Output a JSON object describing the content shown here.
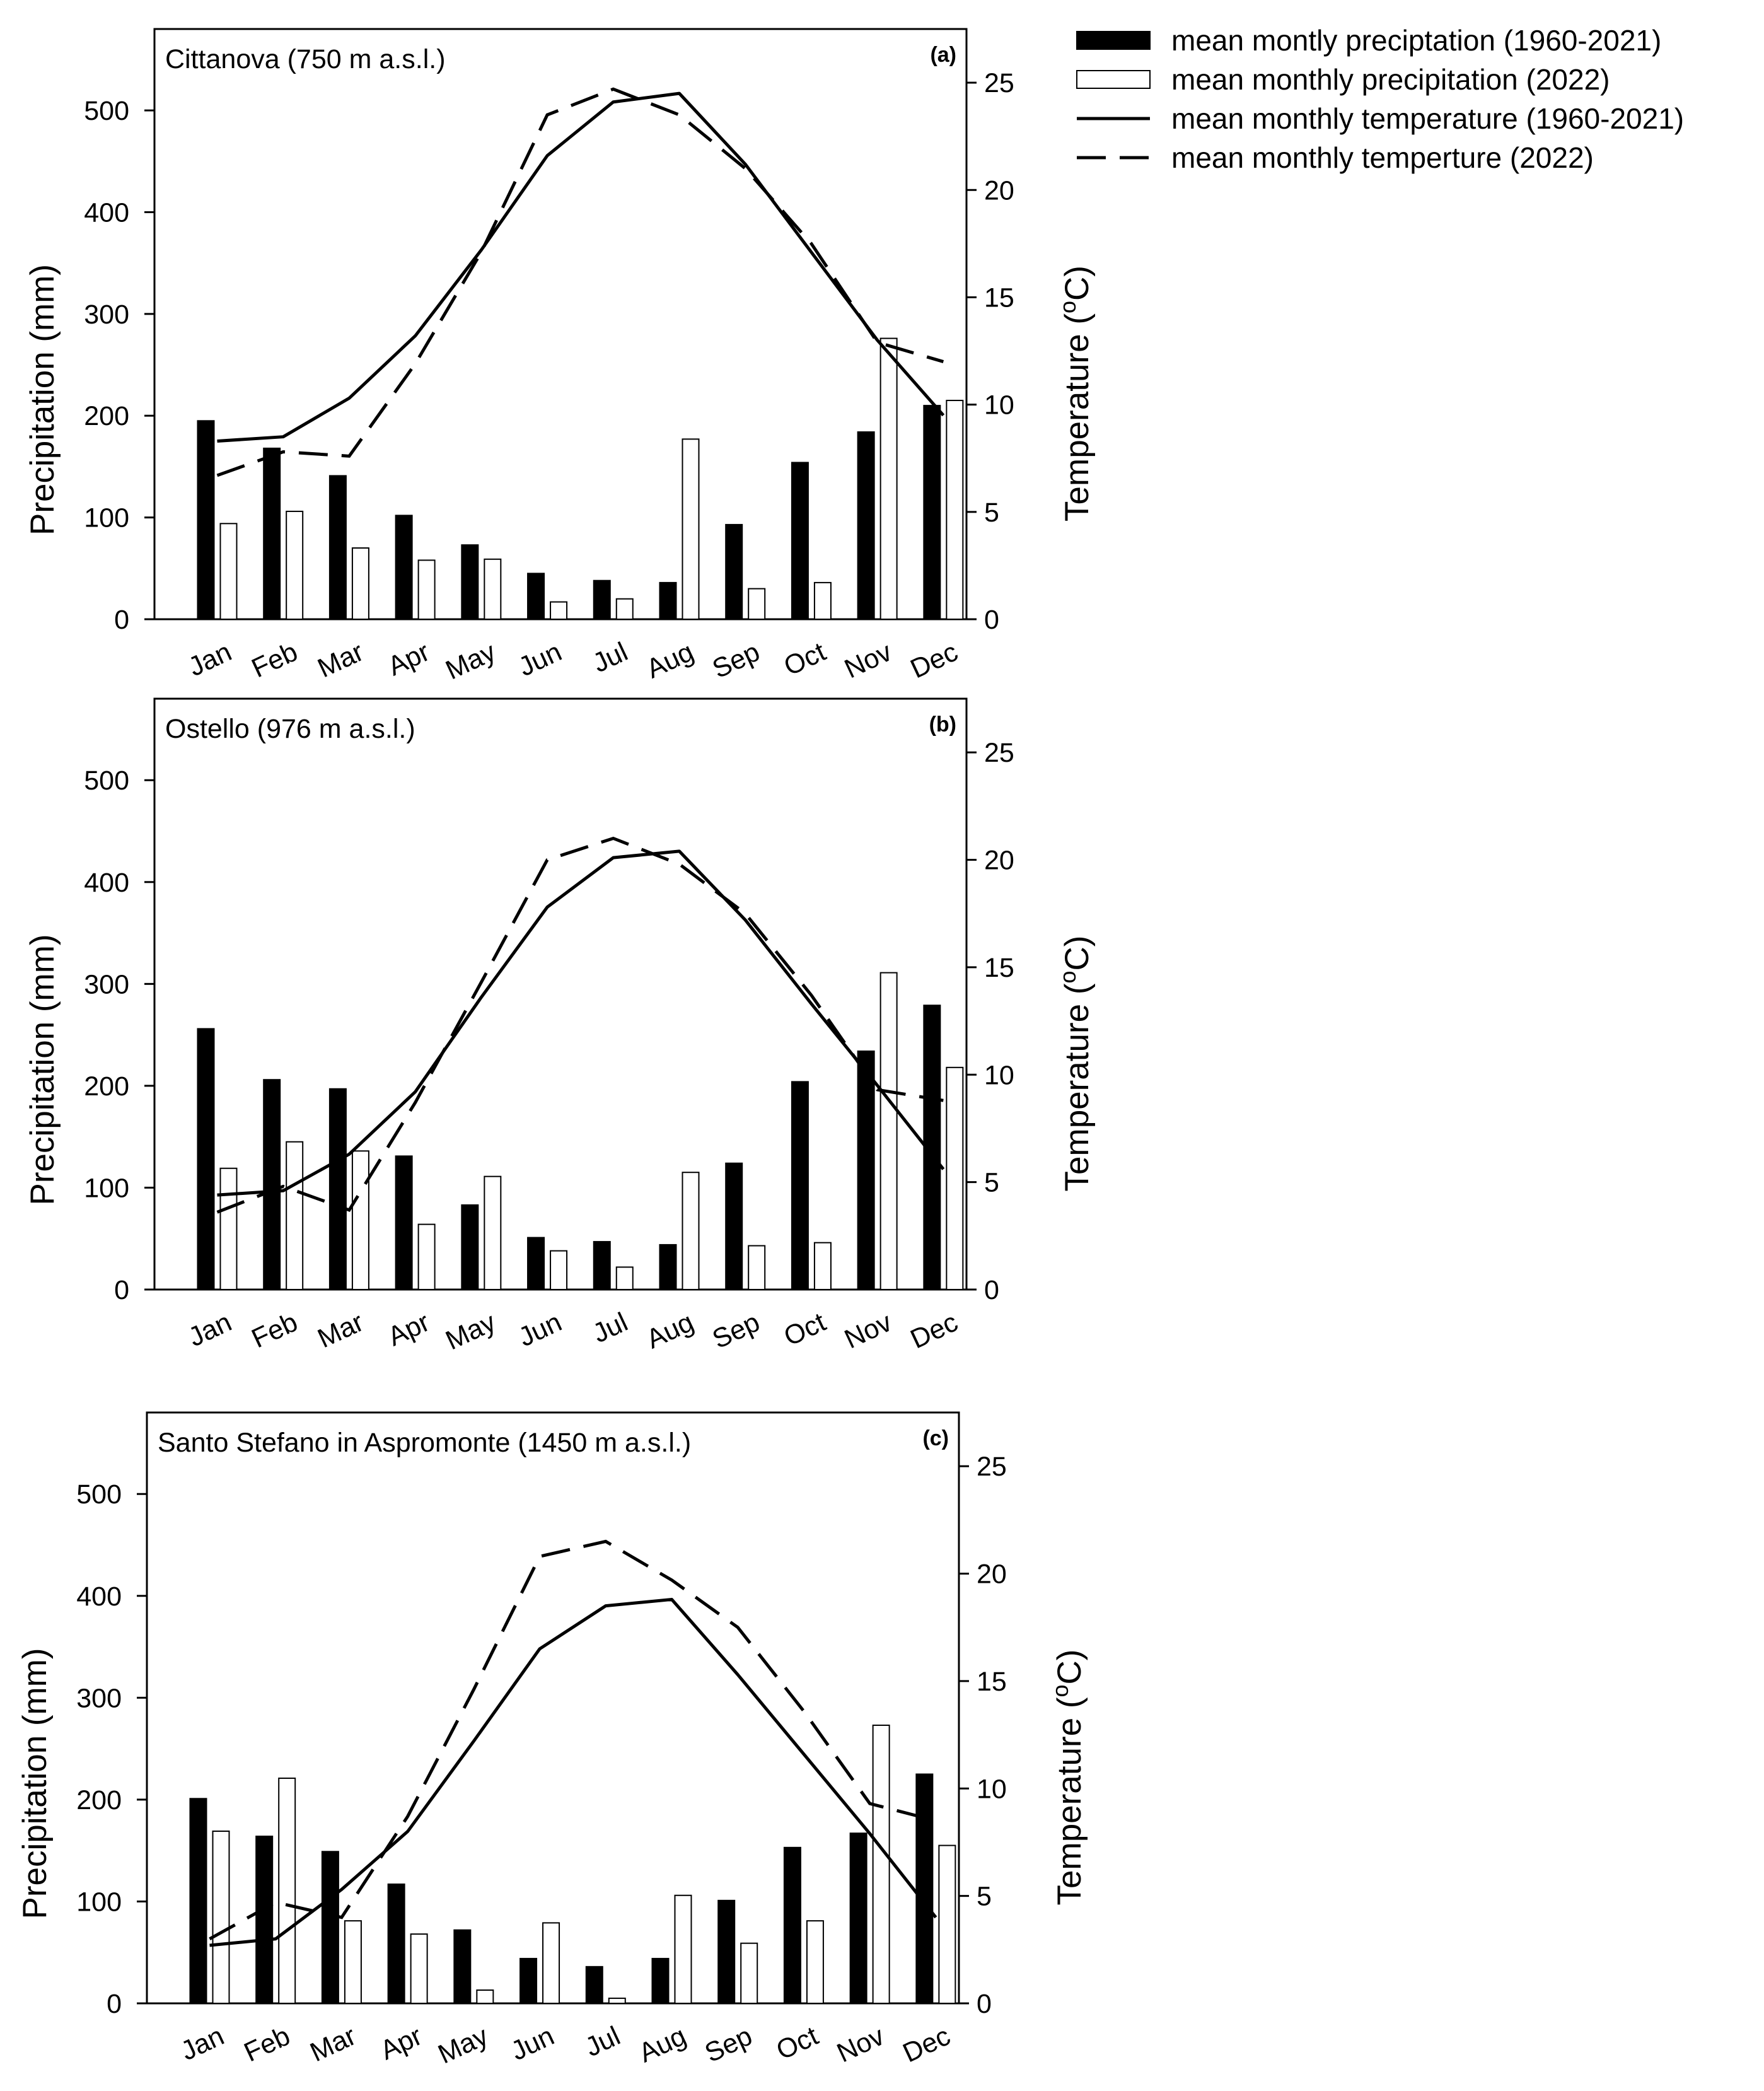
{
  "legend": {
    "entries": [
      {
        "label": "mean montly preciptation (1960-2021)",
        "style": "bar-filled"
      },
      {
        "label": "mean monthly precipitation (2022)",
        "style": "bar-open"
      },
      {
        "label": "mean monthly temperature (1960-2021)",
        "style": "line-solid"
      },
      {
        "label": "mean monthly temperture (2022)",
        "style": "line-dashed"
      }
    ]
  },
  "colors": {
    "ink": "#000000",
    "open_fill": "#ffffff"
  },
  "chart_data": [
    {
      "type": "bar",
      "panel_tag": "(a)",
      "title": "Cittanova (750 m a.s.l.)",
      "categories": [
        "Jan",
        "Feb",
        "Mar",
        "Apr",
        "May",
        "Jun",
        "Jul",
        "Aug",
        "Sep",
        "Oct",
        "Nov",
        "Dec"
      ],
      "ylabel": "Precipitation (mm)",
      "ylabel2_main": "Temperature (",
      "ylabel2_sup": "o",
      "ylabel2_end": "C)",
      "ylim": [
        0,
        580
      ],
      "yticks": [
        0,
        100,
        200,
        300,
        400,
        500
      ],
      "y2lim": [
        0,
        27.5
      ],
      "y2ticks": [
        0,
        5,
        10,
        15,
        20,
        25
      ],
      "series": [
        {
          "name": "mean montly preciptation (1960-2021)",
          "kind": "bar",
          "values": [
            195,
            168,
            141,
            102,
            73,
            45,
            38,
            36,
            93,
            154,
            184,
            210
          ]
        },
        {
          "name": "mean monthly precipitation (2022)",
          "kind": "bar",
          "values": [
            94,
            106,
            70,
            58,
            59,
            17,
            20,
            177,
            30,
            36,
            276,
            215
          ]
        },
        {
          "name": "mean monthly temperature (1960-2021)",
          "kind": "line",
          "axis": "right",
          "values": [
            8.3,
            8.5,
            10.3,
            13.2,
            17.2,
            21.6,
            24.1,
            24.5,
            21.2,
            17.1,
            13.0,
            9.5
          ]
        },
        {
          "name": "mean monthly temperture (2022)",
          "kind": "line",
          "axis": "right",
          "values": [
            6.7,
            7.8,
            7.6,
            11.9,
            17.1,
            23.5,
            24.7,
            23.5,
            21.0,
            17.5,
            12.9,
            12.0
          ]
        }
      ]
    },
    {
      "type": "bar",
      "panel_tag": "(b)",
      "title": "Ostello (976 m a.s.l.)",
      "categories": [
        "Jan",
        "Feb",
        "Mar",
        "Apr",
        "May",
        "Jun",
        "Jul",
        "Aug",
        "Sep",
        "Oct",
        "Nov",
        "Dec"
      ],
      "ylabel": "Precipitation (mm)",
      "ylabel2_main": "Temperature (",
      "ylabel2_sup": "o",
      "ylabel2_end": "C)",
      "ylim": [
        0,
        580
      ],
      "yticks": [
        0,
        100,
        200,
        300,
        400,
        500
      ],
      "y2lim": [
        0,
        27.5
      ],
      "y2ticks": [
        0,
        5,
        10,
        15,
        20,
        25
      ],
      "series": [
        {
          "name": "mean montly preciptation (1960-2021)",
          "kind": "bar",
          "values": [
            256,
            206,
            197,
            131,
            83,
            51,
            47,
            44,
            124,
            204,
            234,
            279
          ]
        },
        {
          "name": "mean monthly precipitation (2022)",
          "kind": "bar",
          "values": [
            119,
            145,
            136,
            64,
            111,
            38,
            22,
            115,
            43,
            46,
            311,
            218
          ]
        },
        {
          "name": "mean monthly temperature (1960-2021)",
          "kind": "line",
          "axis": "right",
          "values": [
            4.4,
            4.6,
            6.3,
            9.2,
            13.6,
            17.8,
            20.1,
            20.4,
            17.2,
            13.3,
            9.5,
            5.6
          ]
        },
        {
          "name": "mean monthly temperture (2022)",
          "kind": "line",
          "axis": "right",
          "values": [
            3.6,
            4.8,
            3.7,
            8.7,
            14.3,
            20.0,
            21.0,
            19.8,
            17.5,
            13.7,
            9.3,
            8.8
          ]
        }
      ]
    },
    {
      "type": "bar",
      "panel_tag": "(c)",
      "title": "Santo Stefano in Aspromonte (1450 m a.s.l.)",
      "categories": [
        "Jan",
        "Feb",
        "Mar",
        "Apr",
        "May",
        "Jun",
        "Jul",
        "Aug",
        "Sep",
        "Oct",
        "Nov",
        "Dec"
      ],
      "ylabel": "Precipitation (mm)",
      "ylabel2_main": "Temperature (",
      "ylabel2_sup": "o",
      "ylabel2_end": "C)",
      "ylim": [
        0,
        580
      ],
      "yticks": [
        0,
        100,
        200,
        300,
        400,
        500
      ],
      "y2lim": [
        0,
        27.5
      ],
      "y2ticks": [
        0,
        5,
        10,
        15,
        20,
        25
      ],
      "series": [
        {
          "name": "mean montly preciptation (1960-2021)",
          "kind": "bar",
          "values": [
            201,
            164,
            149,
            117,
            72,
            44,
            36,
            44,
            101,
            153,
            167,
            225
          ]
        },
        {
          "name": "mean monthly precipitation (2022)",
          "kind": "bar",
          "values": [
            169,
            221,
            81,
            68,
            13,
            79,
            5,
            106,
            59,
            81,
            273,
            155
          ]
        },
        {
          "name": "mean monthly temperature (1960-2021)",
          "kind": "line",
          "axis": "right",
          "values": [
            2.7,
            3.0,
            5.3,
            8.0,
            12.2,
            16.5,
            18.5,
            18.8,
            15.3,
            11.6,
            7.9,
            4.0
          ]
        },
        {
          "name": "mean monthly temperture (2022)",
          "kind": "line",
          "axis": "right",
          "values": [
            3.0,
            4.7,
            4.0,
            8.7,
            14.6,
            20.8,
            21.5,
            19.7,
            17.5,
            13.6,
            9.3,
            8.5
          ]
        }
      ]
    }
  ]
}
